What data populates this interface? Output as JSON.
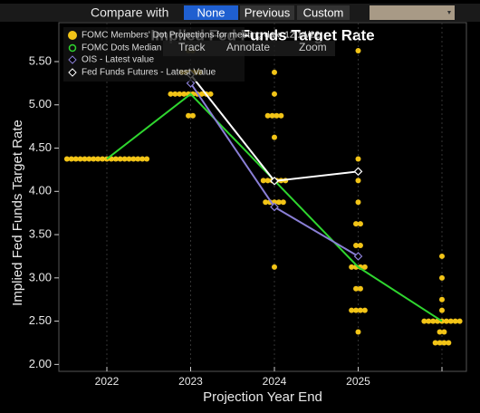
{
  "toolbar": {
    "label": "Compare with",
    "options": [
      "None",
      "Previous",
      "Custom"
    ],
    "selected": 0
  },
  "tools": [
    "Track",
    "Annotate",
    "Zoom"
  ],
  "chart_data": {
    "type": "dotplot",
    "title": "Implied Fed Funds Target Rate",
    "x_label": "Projection Year End",
    "y_label": "Implied Fed Funds Target Rate",
    "categories": [
      "2022",
      "2023",
      "2024",
      "2025",
      null
    ],
    "ylim": [
      1.92,
      5.95
    ],
    "yticks": [
      {
        "value": 2,
        "label": "2.00"
      },
      {
        "value": 2.5,
        "label": "2.50"
      },
      {
        "value": 3,
        "label": "3.00"
      },
      {
        "value": 3.5,
        "label": "3.50"
      },
      {
        "value": 4,
        "label": "4.00"
      },
      {
        "value": 4.5,
        "label": "4.50"
      },
      {
        "value": 5,
        "label": "5.00"
      },
      {
        "value": 5.5,
        "label": "5.50"
      }
    ],
    "dot_series": {
      "name": "FOMC Members' Dot Projections for meeting date 12/14/22",
      "color": "#f2c417",
      "dots": [
        [
          {
            "rate": 4.375,
            "count": 19
          }
        ],
        [
          {
            "rate": 5.625,
            "count": 2
          },
          {
            "rate": 5.375,
            "count": 5
          },
          {
            "rate": 5.125,
            "count": 10
          },
          {
            "rate": 4.875,
            "count": 2
          }
        ],
        [
          {
            "rate": 5.375,
            "count": 1
          },
          {
            "rate": 5.125,
            "count": 1
          },
          {
            "rate": 4.875,
            "count": 4
          },
          {
            "rate": 4.625,
            "count": 1
          },
          {
            "rate": 4.125,
            "count": 6
          },
          {
            "rate": 3.875,
            "count": 5
          },
          {
            "rate": 3.125,
            "count": 1
          }
        ],
        [
          {
            "rate": 5.625,
            "count": 1
          },
          {
            "rate": 4.375,
            "count": 1
          },
          {
            "rate": 4.125,
            "count": 1
          },
          {
            "rate": 3.875,
            "count": 1
          },
          {
            "rate": 3.625,
            "count": 2
          },
          {
            "rate": 3.375,
            "count": 2
          },
          {
            "rate": 3.125,
            "count": 4
          },
          {
            "rate": 2.875,
            "count": 2
          },
          {
            "rate": 2.625,
            "count": 4
          },
          {
            "rate": 2.375,
            "count": 1
          }
        ],
        [
          {
            "rate": 3.25,
            "count": 1
          },
          {
            "rate": 3.0,
            "count": 1
          },
          {
            "rate": 2.75,
            "count": 1
          },
          {
            "rate": 2.625,
            "count": 1
          },
          {
            "rate": 2.5,
            "count": 9
          },
          {
            "rate": 2.375,
            "count": 2
          },
          {
            "rate": 2.25,
            "count": 4
          }
        ]
      ]
    },
    "series": [
      {
        "name": "FOMC Dots Median",
        "color": "#2fd62f",
        "marker": "none",
        "values": [
          4.375,
          5.125,
          4.125,
          3.125,
          2.5
        ]
      },
      {
        "name": "OIS - Latest value",
        "color": "#8a7fd6",
        "marker": "diamond",
        "values": [
          null,
          5.25,
          3.82,
          3.25,
          null
        ]
      },
      {
        "name": "Fed Funds Futures - Latest Value",
        "color": "#ffffff",
        "marker": "diamond",
        "values": [
          null,
          5.35,
          4.12,
          4.23,
          null
        ]
      }
    ]
  }
}
